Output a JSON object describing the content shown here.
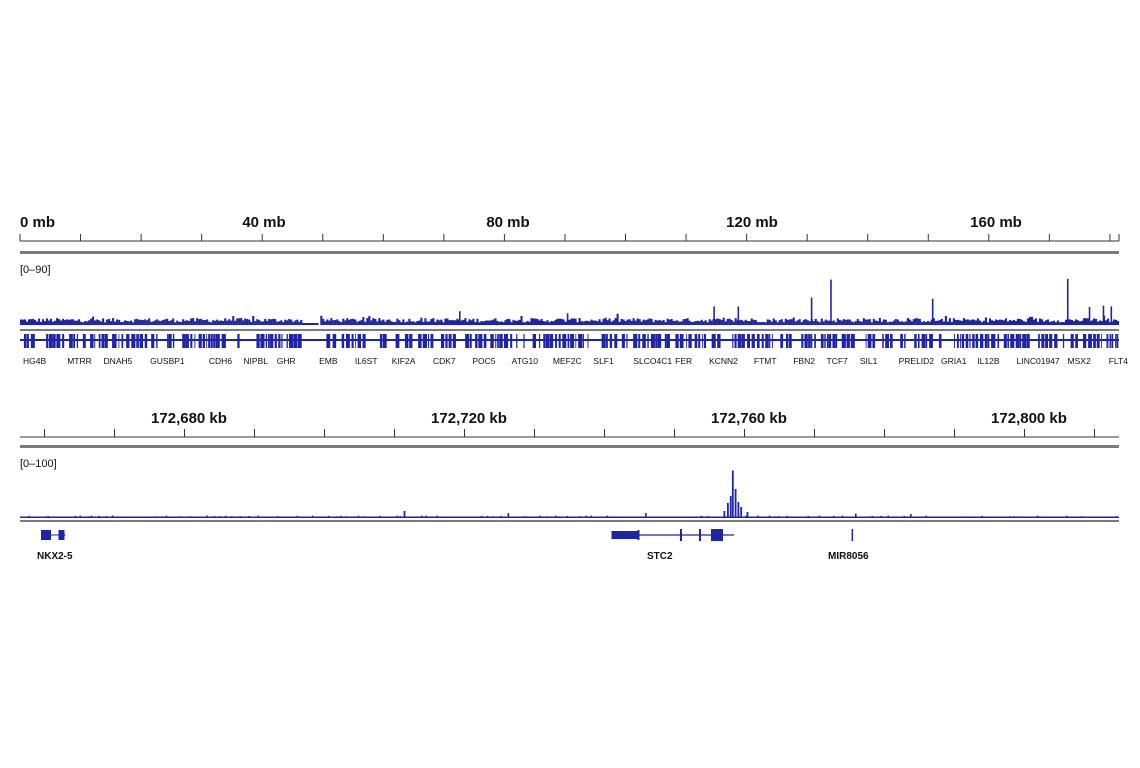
{
  "colors": {
    "signal": "#1f24a6",
    "gene": "#1f24a6",
    "divider": "#7a7a7a",
    "tick": "#333333"
  },
  "panels": [
    {
      "ruler": {
        "tick_labels": [
          "0 mb",
          "40 mb",
          "80 mb",
          "120 mb",
          "160 mb"
        ]
      },
      "track_range": "[0–90]",
      "genes": [
        "HG4B",
        "MTRR",
        "DNAH5",
        "GUSBP1",
        "CDH6",
        "NIPBL",
        "GHR",
        "EMB",
        "IL6ST",
        "KIF2A",
        "CDK7",
        "POC5",
        "ATG10",
        "MEF2C",
        "SLF1",
        "SLCO4C1",
        "FER",
        "KCNN2",
        "FTMT",
        "FBN2",
        "TCF7",
        "SIL1",
        "PRELID2",
        "GRIA1",
        "IL12B",
        "LINC01947",
        "MSX2",
        "FLT4"
      ]
    },
    {
      "ruler": {
        "tick_labels": [
          "172,680 kb",
          "172,720 kb",
          "172,760 kb",
          "172,800 kb"
        ]
      },
      "track_range": "[0–100]",
      "genes": [
        "NKX2-5",
        "STC2",
        "MIR8056"
      ]
    }
  ],
  "chart_data": [
    {
      "type": "area",
      "title": "",
      "xlabel": "",
      "ylabel": "",
      "x_unit": "mb",
      "xlim": [
        0,
        181.5
      ],
      "ylim": [
        0,
        90
      ],
      "grid": false,
      "x_ticks": [
        0,
        40,
        80,
        120,
        160
      ],
      "baseline_level": 7,
      "gap": [
        46.5,
        49.3
      ],
      "peaks": [
        {
          "x": 72.5,
          "y": 20
        },
        {
          "x": 90.3,
          "y": 17
        },
        {
          "x": 114.5,
          "y": 27
        },
        {
          "x": 118.5,
          "y": 27
        },
        {
          "x": 130.6,
          "y": 40
        },
        {
          "x": 133.8,
          "y": 66
        },
        {
          "x": 150.6,
          "y": 38
        },
        {
          "x": 172.9,
          "y": 67
        },
        {
          "x": 176.5,
          "y": 26
        },
        {
          "x": 178.8,
          "y": 28
        },
        {
          "x": 180.1,
          "y": 27
        }
      ],
      "genes": [
        {
          "name": "HG4B",
          "x": 0.5
        },
        {
          "name": "MTRR",
          "x": 7.8
        },
        {
          "name": "DNAH5",
          "x": 13.8
        },
        {
          "name": "GUSBP1",
          "x": 21.5
        },
        {
          "name": "CDH6",
          "x": 31.2
        },
        {
          "name": "NIPBL",
          "x": 36.9
        },
        {
          "name": "GHR",
          "x": 42.4
        },
        {
          "name": "EMB",
          "x": 49.4
        },
        {
          "name": "IL6ST",
          "x": 55.3
        },
        {
          "name": "KIF2A",
          "x": 61.4
        },
        {
          "name": "CDK7",
          "x": 68.2
        },
        {
          "name": "POC5",
          "x": 74.7
        },
        {
          "name": "ATG10",
          "x": 81.2
        },
        {
          "name": "MEF2C",
          "x": 88.0
        },
        {
          "name": "SLF1",
          "x": 94.7
        },
        {
          "name": "SLCO4C1",
          "x": 101.3
        },
        {
          "name": "FER",
          "x": 108.2
        },
        {
          "name": "KCNN2",
          "x": 113.8
        },
        {
          "name": "FTMT",
          "x": 121.2
        },
        {
          "name": "FBN2",
          "x": 127.7
        },
        {
          "name": "TCF7",
          "x": 133.2
        },
        {
          "name": "SIL1",
          "x": 138.7
        },
        {
          "name": "PRELID2",
          "x": 145.1
        },
        {
          "name": "GRIA1",
          "x": 152.1
        },
        {
          "name": "IL12B",
          "x": 158.1
        },
        {
          "name": "LINC01947",
          "x": 164.6
        },
        {
          "name": "MSX2",
          "x": 173.0
        },
        {
          "name": "FLT4",
          "x": 179.8
        }
      ]
    },
    {
      "type": "area",
      "title": "",
      "xlabel": "",
      "ylabel": "",
      "x_unit": "kb",
      "xlim": [
        172656.5,
        172813.5
      ],
      "ylim": [
        0,
        100
      ],
      "grid": false,
      "x_ticks": [
        172680,
        172720,
        172760,
        172800
      ],
      "baseline_level": 3,
      "peaks": [
        {
          "x": 172711.3,
          "y": 14
        },
        {
          "x": 172757.0,
          "y": 14
        },
        {
          "x": 172757.5,
          "y": 30
        },
        {
          "x": 172757.9,
          "y": 44
        },
        {
          "x": 172758.2,
          "y": 95
        },
        {
          "x": 172758.6,
          "y": 58
        },
        {
          "x": 172759.0,
          "y": 32
        },
        {
          "x": 172759.4,
          "y": 22
        },
        {
          "x": 172760.3,
          "y": 12
        }
      ],
      "genes": [
        {
          "name": "NKX2-5",
          "x": 172661.0,
          "start": 172659.5,
          "end": 172663.0
        },
        {
          "name": "STC2",
          "x": 172750.0,
          "start": 172741.0,
          "end": 172758.5
        },
        {
          "name": "MIR8056",
          "x": 172775.3,
          "start": 172775.2,
          "end": 172775.4
        }
      ]
    }
  ]
}
